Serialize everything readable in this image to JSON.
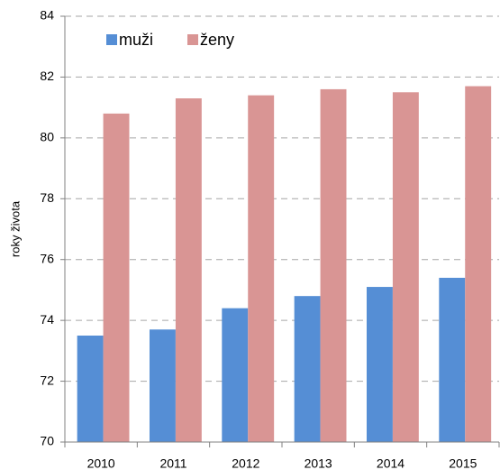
{
  "chart_data": {
    "type": "bar",
    "y_label": "roky života",
    "categories": [
      "2010",
      "2011",
      "2012",
      "2013",
      "2014",
      "2015"
    ],
    "series": [
      {
        "name": "muži",
        "color": "#558ed5",
        "values": [
          73.5,
          73.7,
          74.4,
          74.8,
          75.1,
          75.4
        ]
      },
      {
        "name": "ženy",
        "color": "#d99594",
        "values": [
          80.8,
          81.3,
          81.4,
          81.6,
          81.5,
          81.7
        ]
      }
    ],
    "ylim": [
      70,
      84
    ],
    "yticks": [
      70,
      72,
      74,
      76,
      78,
      80,
      82,
      84
    ],
    "grid": true,
    "legend": "top-left"
  }
}
